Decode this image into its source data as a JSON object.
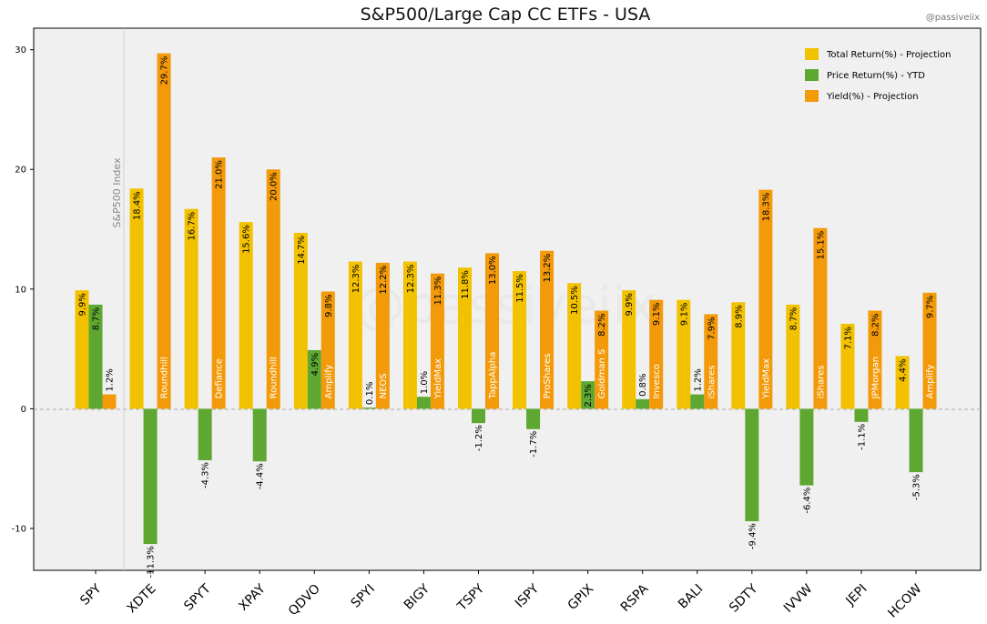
{
  "chart_data": {
    "type": "bar",
    "title": "S&P500/Large Cap CC ETFs - USA",
    "handle": "@passiveiix",
    "watermark": "@passiveiix",
    "reference_label": "S&P500 Index",
    "xlabel": "",
    "ylabel": "",
    "ylim": [
      -13.5,
      31.8
    ],
    "yticks": [
      -10,
      0,
      10,
      20,
      30
    ],
    "grid": false,
    "legend_position": "top-right",
    "categories": [
      "SPY",
      "XDTE",
      "SPYT",
      "XPAY",
      "QDVO",
      "SPYI",
      "BIGY",
      "TSPY",
      "ISPY",
      "GPIX",
      "RSPA",
      "BALI",
      "SDTY",
      "IVVW",
      "JEPI",
      "HCOW"
    ],
    "issuers": [
      "",
      "Roundhill",
      "Defiance",
      "Roundhill",
      "Amplify",
      "NEOS",
      "YieldMax",
      "TappAlpha",
      "ProShares",
      "Goldman S",
      "Invesco",
      "iShares",
      "YieldMax",
      "iShares",
      "JPMorgan",
      "Amplify"
    ],
    "series": [
      {
        "name": "Total Return(%) - Projection",
        "color": "#f2c200",
        "values": [
          9.9,
          18.4,
          16.7,
          15.6,
          14.7,
          12.3,
          12.3,
          11.8,
          11.5,
          10.5,
          9.9,
          9.1,
          8.9,
          8.7,
          7.1,
          4.4
        ]
      },
      {
        "name": "Price Return(%) - YTD",
        "color": "#5ea832",
        "values": [
          8.7,
          -11.3,
          -4.3,
          -4.4,
          4.9,
          0.1,
          1.0,
          -1.2,
          -1.7,
          2.3,
          0.8,
          1.2,
          -9.4,
          -6.4,
          -1.1,
          -5.3
        ]
      },
      {
        "name": "Yield(%) - Projection",
        "color": "#f39a0a",
        "values": [
          1.2,
          29.7,
          21.0,
          20.0,
          9.8,
          12.2,
          11.3,
          13.0,
          13.2,
          8.2,
          9.1,
          7.9,
          18.3,
          15.1,
          8.2,
          9.7
        ]
      }
    ]
  }
}
